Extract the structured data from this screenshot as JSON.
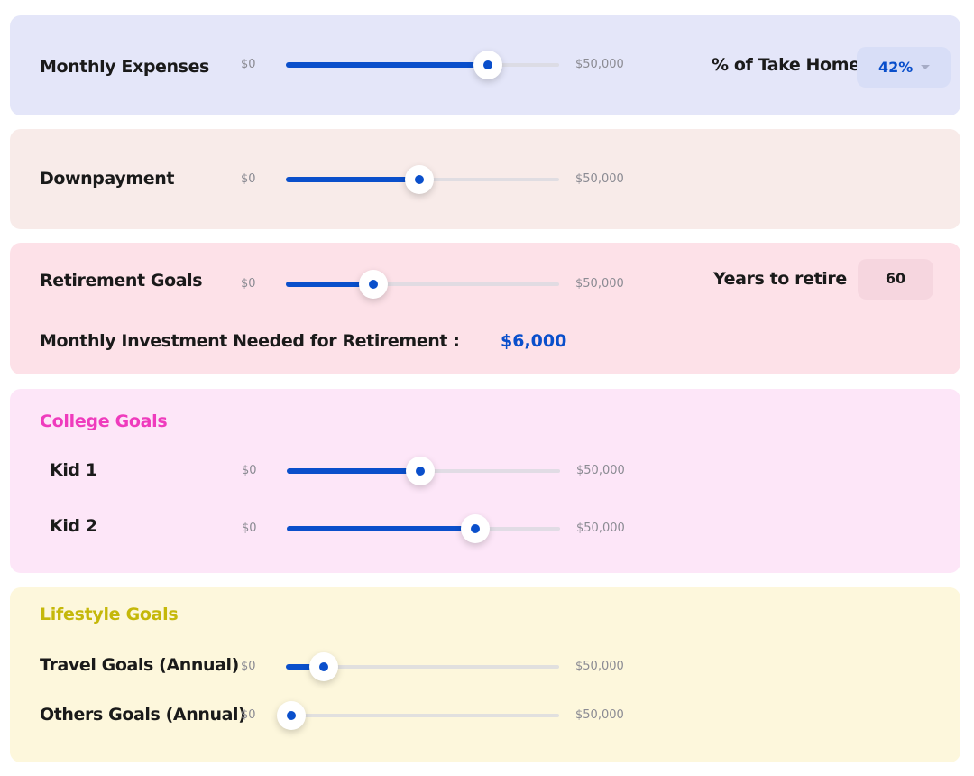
{
  "colors": {
    "accent": "#0a4fcb",
    "expenses_bg": "#e4e6f9",
    "downpayment_bg": "#f8ebe9",
    "retirement_bg": "#fde1e8",
    "college_bg": "#fde6f8",
    "lifestyle_bg": "#fdf7dc",
    "college_heading": "#ef3bbd",
    "lifestyle_heading": "#c5b80a"
  },
  "expenses": {
    "label": "Monthly Expenses",
    "min_label": "$0",
    "max_label": "$50,000",
    "slider_value_fraction": 0.74,
    "take_home_label": "% of Take Home",
    "take_home_value": "42%",
    "take_home_icon": "chevron-down-icon"
  },
  "downpayment": {
    "label": "Downpayment",
    "min_label": "$0",
    "max_label": "$50,000",
    "slider_value_fraction": 0.49
  },
  "retirement": {
    "label": "Retirement Goals",
    "min_label": "$0",
    "max_label": "$50,000",
    "slider_value_fraction": 0.32,
    "years_label": "Years to retire",
    "years_value": "60",
    "monthly_label": "Monthly Investment Needed for Retirement :",
    "monthly_value": "$6,000"
  },
  "college": {
    "heading": "College Goals",
    "kids": [
      {
        "label": "Kid 1",
        "min_label": "$0",
        "max_label": "$50,000",
        "slider_value_fraction": 0.49
      },
      {
        "label": "Kid 2",
        "min_label": "$0",
        "max_label": "$50,000",
        "slider_value_fraction": 0.69
      }
    ]
  },
  "lifestyle": {
    "heading": "Lifestyle Goals",
    "items": [
      {
        "label": "Travel Goals (Annual)",
        "min_label": "$0",
        "max_label": "$50,000",
        "slider_value_fraction": 0.14
      },
      {
        "label": "Others Goals (Annual)",
        "min_label": "$0",
        "max_label": "$50,000",
        "slider_value_fraction": 0.02
      }
    ]
  }
}
